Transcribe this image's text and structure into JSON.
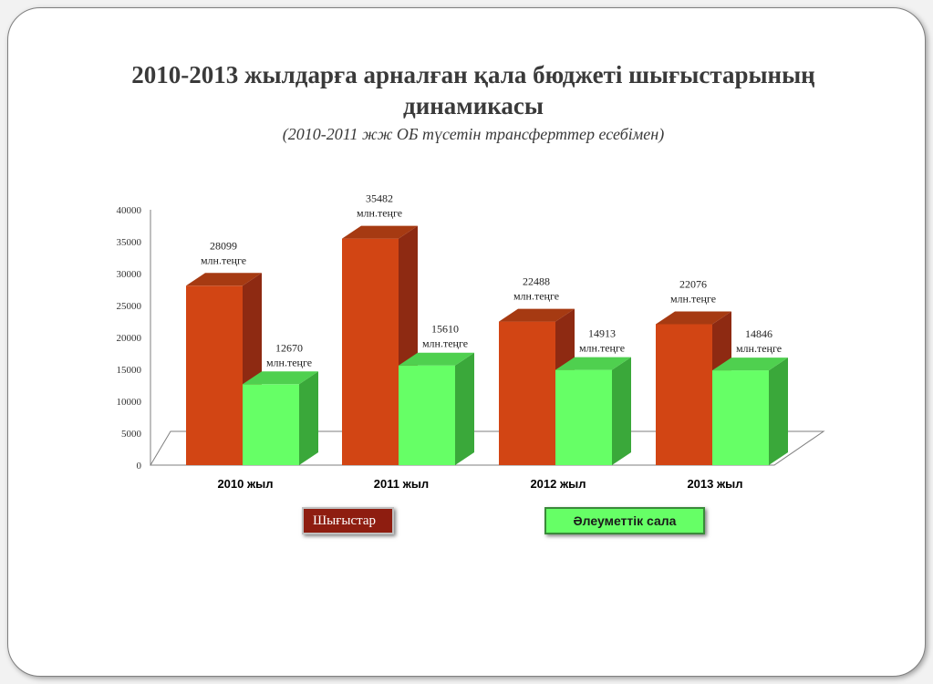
{
  "title": "2010-2013 жылдарға арналған қала бюджеті шығыстарының динамикасы",
  "subtitle": "(2010-2011 жж ОБ түсетін  трансферттер есебімен)",
  "colors": {
    "expenses_front": "#d24514",
    "expenses_side": "#8e2a12",
    "expenses_top": "#a63a12",
    "social_front": "#66ff66",
    "social_side": "#3aa83a",
    "social_top": "#4fd04f"
  },
  "legend": {
    "expenses": "Шығыстар",
    "social": "Әлеуметтік сала"
  },
  "chart_data": {
    "type": "bar",
    "categories": [
      "2010 жыл",
      "2011 жыл",
      "2012 жыл",
      "2013 жыл"
    ],
    "series": [
      {
        "name": "Шығыстар",
        "values": [
          28099,
          35482,
          22488,
          22076
        ]
      },
      {
        "name": "Әлеуметтік сала",
        "values": [
          12670,
          15610,
          14913,
          14846
        ]
      }
    ],
    "unit_label": "млн.теңге",
    "ylim": [
      0,
      40000
    ],
    "yticks": [
      0,
      5000,
      10000,
      15000,
      20000,
      25000,
      30000,
      35000,
      40000
    ],
    "legend_position": "bottom",
    "grid": false,
    "style": "3d-column"
  }
}
